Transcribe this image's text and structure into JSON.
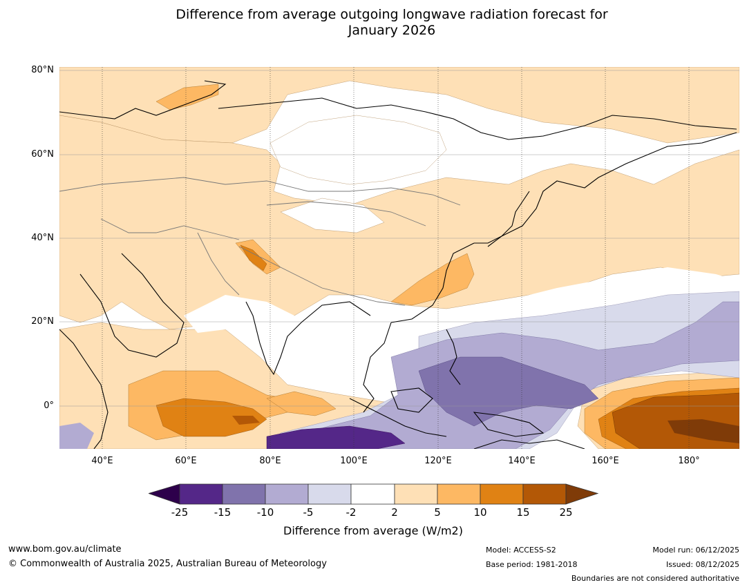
{
  "title_line1": "Difference from average outgoing longwave radiation forecast for",
  "title_line2": "January 2026",
  "lat_labels": [
    "80°N",
    "60°N",
    "40°N",
    "20°N",
    "0°"
  ],
  "lon_labels": [
    "40°E",
    "60°E",
    "80°E",
    "100°E",
    "120°E",
    "140°E",
    "160°E",
    "180°"
  ],
  "colors": {
    "extend_low": "#2d004b",
    "purple_dark": "#542788",
    "purple_mid": "#8073ac",
    "purple_light": "#b2abd2",
    "purple_pale": "#d8daeb",
    "neutral": "#ffffff",
    "orange_pale": "#fee0b6",
    "orange_light": "#fdb863",
    "orange_mid": "#e08214",
    "orange_dark": "#b35806",
    "extend_high": "#7f3b08"
  },
  "colorbar": {
    "ticks": [
      "-25",
      "-15",
      "-10",
      "-5",
      "-2",
      "2",
      "5",
      "10",
      "15",
      "25"
    ],
    "label": "Difference from average (W/m2)"
  },
  "footer": {
    "website": "www.bom.gov.au/climate",
    "copyright": "© Commonwealth of Australia 2025, Australian Bureau of Meteorology",
    "model": "Model: ACCESS-S2",
    "base_period": "Base period: 1981-2018",
    "model_run": "Model run: 06/12/2025",
    "issued": "Issued: 08/12/2025",
    "disclaimer": "Boundaries are not considered authoritative"
  }
}
